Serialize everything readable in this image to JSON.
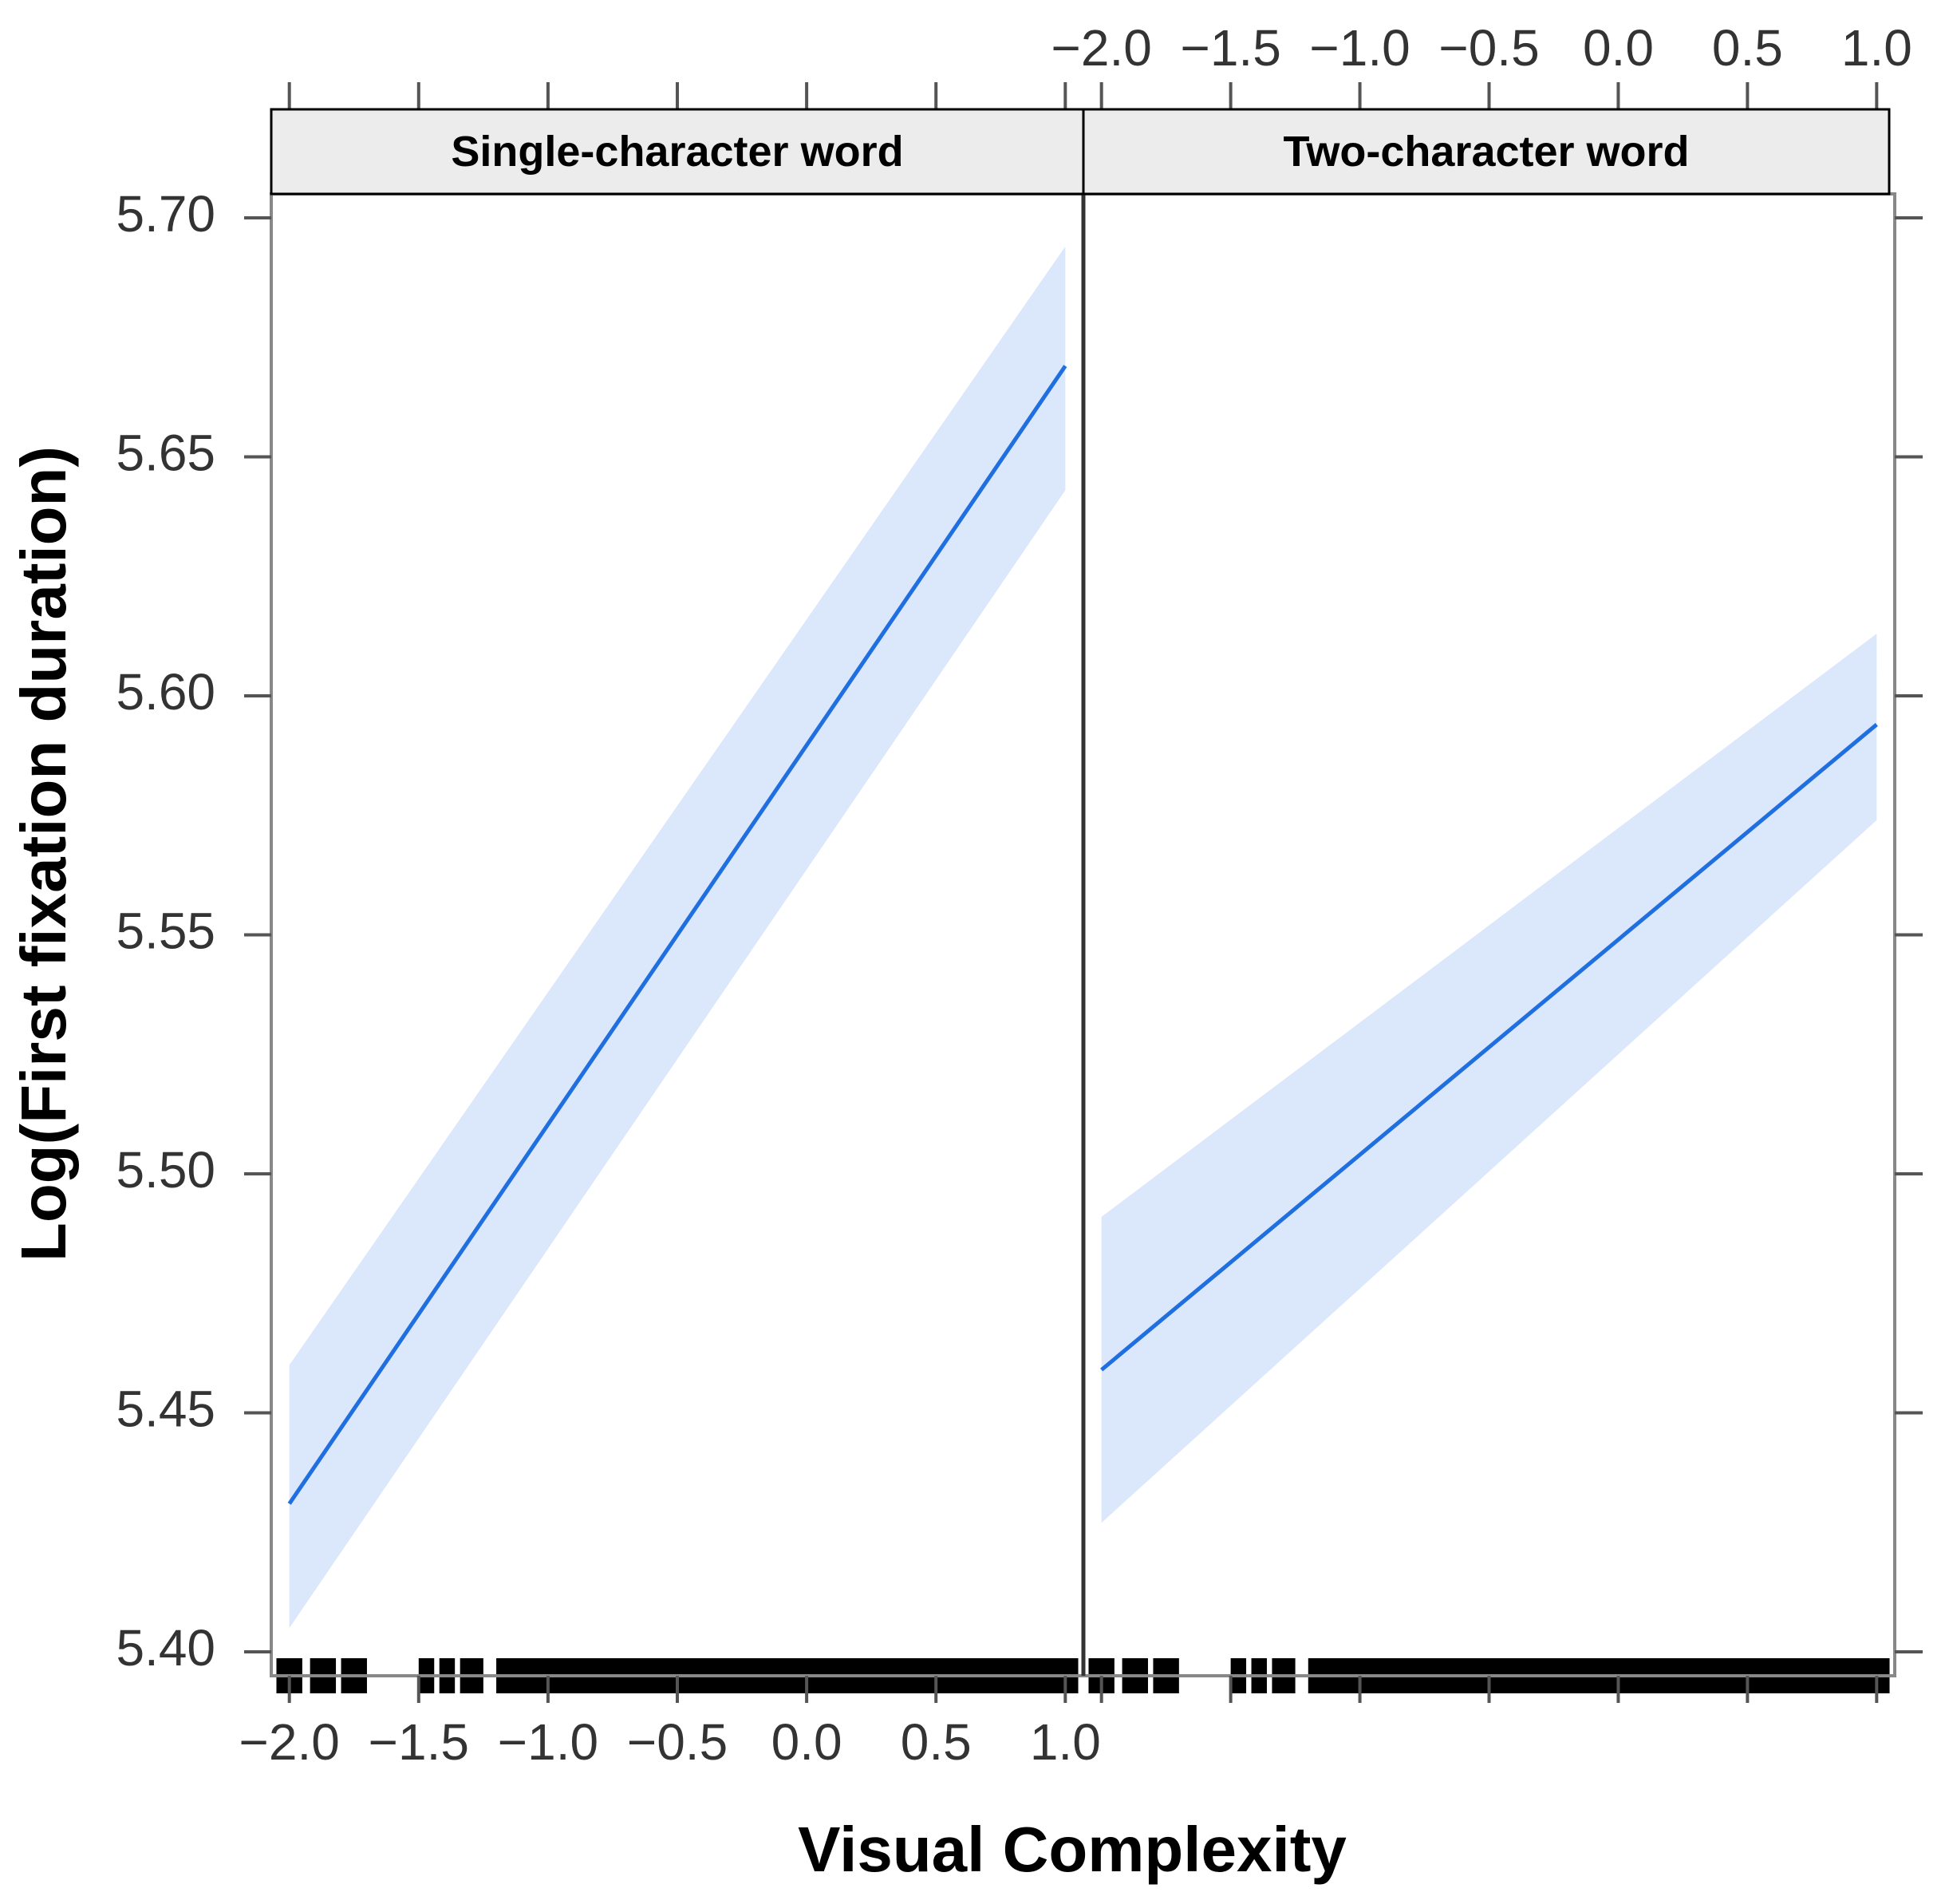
{
  "chart_data": {
    "type": "line",
    "xlabel": "Visual Complexity",
    "ylabel": "Log(First fixation duration)",
    "xlim": [
      -2.07,
      1.07
    ],
    "ylim": [
      5.395,
      5.705
    ],
    "x_ticks": [
      -2.0,
      -1.5,
      -1.0,
      -0.5,
      0.0,
      0.5,
      1.0
    ],
    "x_tick_labels": [
      "−2.0",
      "−1.5",
      "−1.0",
      "−0.5",
      "0.0",
      "0.5",
      "1.0"
    ],
    "y_ticks": [
      5.4,
      5.45,
      5.5,
      5.55,
      5.6,
      5.65,
      5.7
    ],
    "y_tick_labels": [
      "5.40",
      "5.45",
      "5.50",
      "5.55",
      "5.60",
      "5.65",
      "5.70"
    ],
    "grid": false,
    "colors": {
      "line": "#1f6fe0",
      "band": "#dbe7fb",
      "strip_bg": "#ececec",
      "rug": "#000000"
    },
    "rug_bands": [
      [
        -2.05,
        -1.95
      ],
      [
        -1.92,
        -1.82
      ],
      [
        -1.8,
        -1.7
      ],
      [
        -1.5,
        -1.44
      ],
      [
        -1.42,
        -1.36
      ],
      [
        -1.34,
        -1.25
      ],
      [
        -1.2,
        1.05
      ]
    ],
    "panels": [
      {
        "strip": "Single-character word",
        "x": [
          -2.0,
          1.0
        ],
        "fit": [
          5.431,
          5.669
        ],
        "lower": [
          5.405,
          5.643
        ],
        "upper": [
          5.46,
          5.694
        ]
      },
      {
        "strip": "Two-character word",
        "x": [
          -2.0,
          1.0
        ],
        "fit": [
          5.459,
          5.594
        ],
        "lower": [
          5.427,
          5.574
        ],
        "upper": [
          5.491,
          5.613
        ]
      }
    ]
  }
}
